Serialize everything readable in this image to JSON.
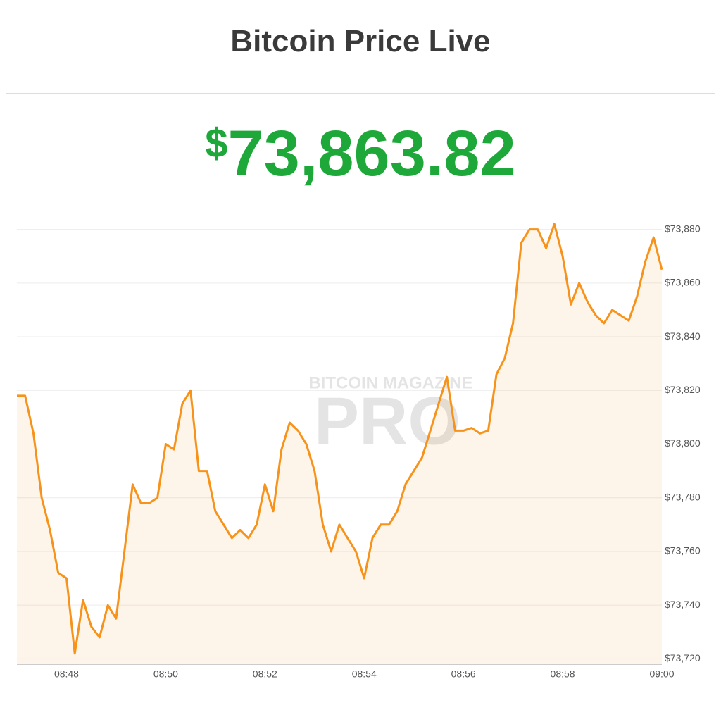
{
  "title": "Bitcoin Price Live",
  "price": {
    "symbol": "$",
    "amount": "73,863.82"
  },
  "chart_data": {
    "type": "area",
    "watermark": [
      "BITCOIN MAGAZINE",
      "PRO"
    ],
    "categories": [
      null,
      null,
      null,
      null,
      null,
      null,
      "08:48",
      null,
      null,
      null,
      null,
      null,
      null,
      null,
      null,
      null,
      null,
      null,
      "08:50",
      null,
      null,
      null,
      null,
      null,
      null,
      null,
      null,
      null,
      null,
      null,
      "08:52",
      null,
      null,
      null,
      null,
      null,
      null,
      null,
      null,
      null,
      null,
      null,
      "08:54",
      null,
      null,
      null,
      null,
      null,
      null,
      null,
      null,
      null,
      null,
      null,
      "08:56",
      null,
      null,
      null,
      null,
      null,
      null,
      null,
      null,
      null,
      null,
      null,
      "08:58",
      null,
      null,
      null,
      null,
      null,
      null,
      null,
      null,
      null,
      null,
      null,
      "09:00"
    ],
    "values": [
      73818,
      73818,
      73804,
      73780,
      73768,
      73752,
      73750,
      73722,
      73742,
      73732,
      73728,
      73740,
      73735,
      73760,
      73785,
      73778,
      73778,
      73780,
      73800,
      73798,
      73815,
      73820,
      73790,
      73790,
      73775,
      73770,
      73765,
      73768,
      73765,
      73770,
      73785,
      73775,
      73798,
      73808,
      73805,
      73800,
      73790,
      73770,
      73760,
      73770,
      73765,
      73760,
      73750,
      73765,
      73770,
      73770,
      73775,
      73785,
      73790,
      73795,
      73805,
      73815,
      73825,
      73805,
      73805,
      73806,
      73804,
      73805,
      73826,
      73832,
      73845,
      73875,
      73880,
      73880,
      73873,
      73882,
      73870,
      73852,
      73860,
      73853,
      73848,
      73845,
      73850,
      73848,
      73846,
      73855,
      73868,
      73877,
      73865
    ],
    "color": "#f7931a",
    "ylim": [
      73718,
      73882
    ],
    "yticks": [
      {
        "value": 73720,
        "label": "$73,720"
      },
      {
        "value": 73740,
        "label": "$73,740"
      },
      {
        "value": 73760,
        "label": "$73,760"
      },
      {
        "value": 73780,
        "label": "$73,780"
      },
      {
        "value": 73800,
        "label": "$73,800"
      },
      {
        "value": 73820,
        "label": "$73,820"
      },
      {
        "value": 73840,
        "label": "$73,840"
      },
      {
        "value": 73860,
        "label": "$73,860"
      },
      {
        "value": 73880,
        "label": "$73,880"
      }
    ],
    "grid": true
  }
}
